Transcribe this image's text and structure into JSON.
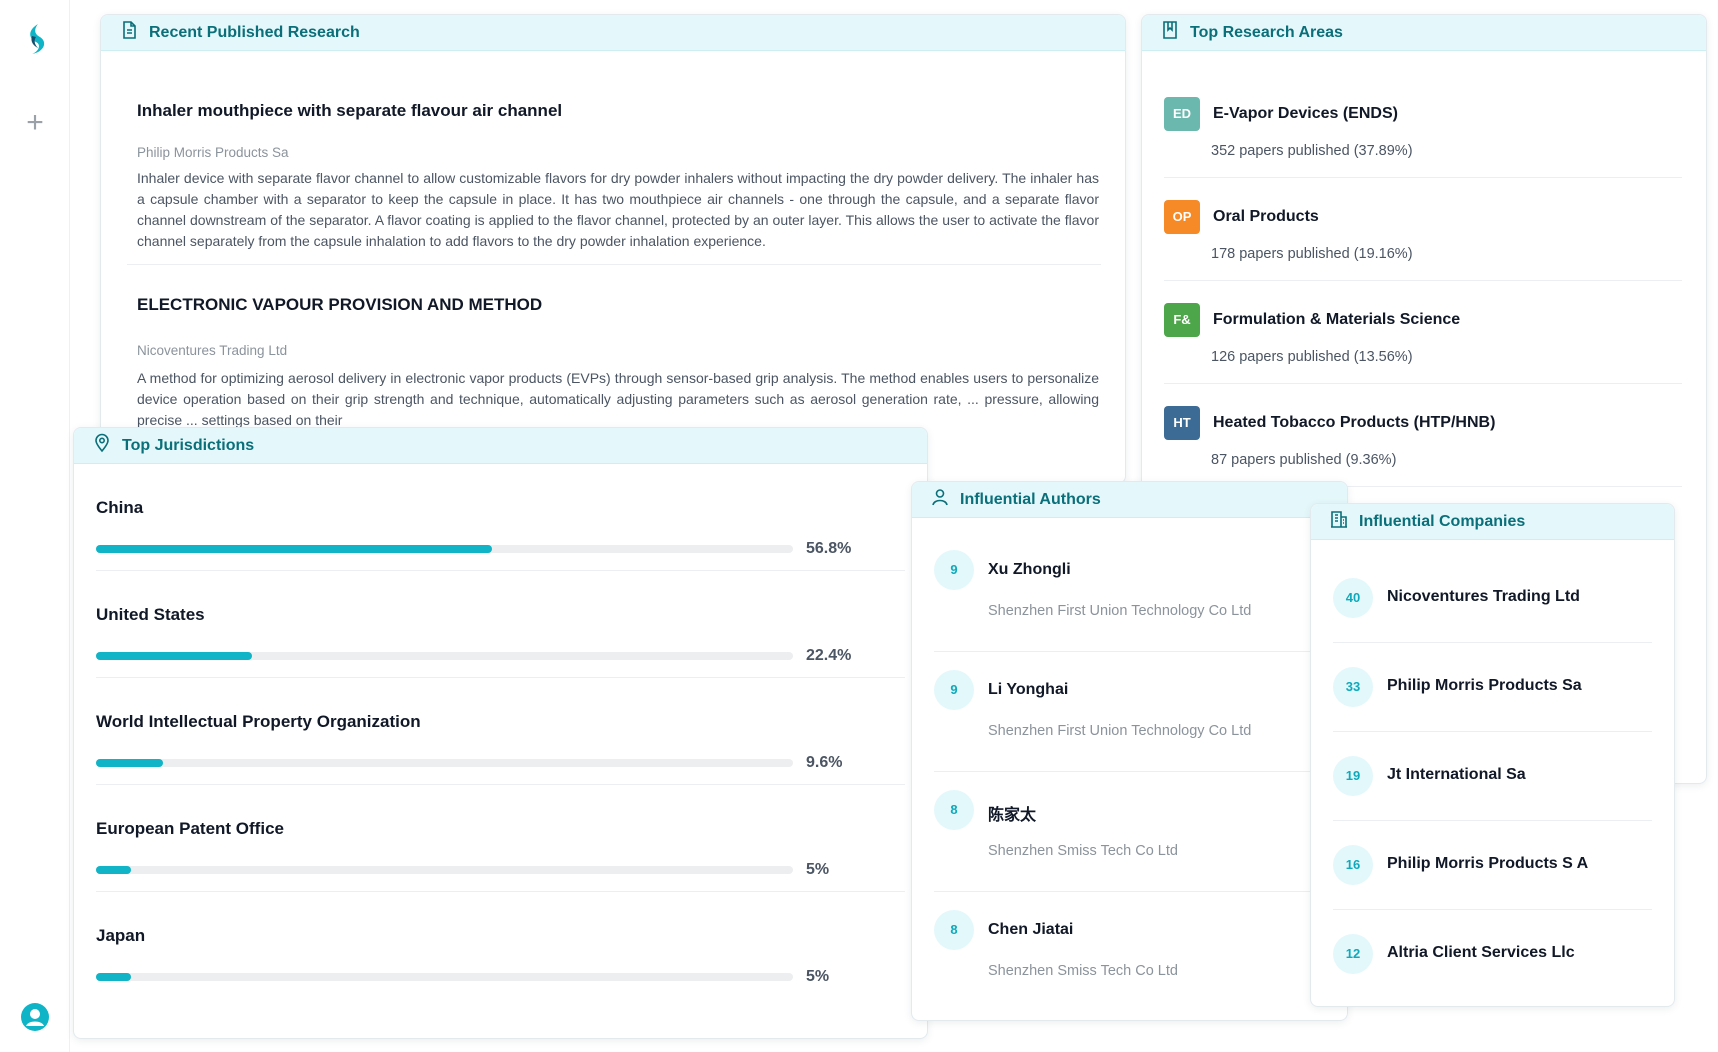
{
  "recent_research": {
    "title": "Recent Published Research",
    "papers": [
      {
        "title": "Inhaler mouthpiece with separate flavour air channel",
        "org": "Philip Morris Products Sa",
        "abstract": "Inhaler device with separate flavor channel to allow customizable flavors for dry powder inhalers without impacting the dry powder delivery. The inhaler has a capsule chamber with a separator to keep the capsule in place. It has two mouthpiece air channels - one through the capsule, and a separate flavor channel downstream of the separator. A flavor coating is applied to the flavor channel, protected by an outer layer. This allows the user to activate the flavor channel separately from the capsule inhalation to add flavors to the dry powder inhalation experience."
      },
      {
        "title": "ELECTRONIC VAPOUR PROVISION AND METHOD",
        "org": "Nicoventures Trading Ltd",
        "abstract": "A method for optimizing aerosol delivery in electronic vapor products (EVPs) through sensor-based grip analysis. The method enables users to personalize device operation based on their grip strength and technique, automatically adjusting parameters such as aerosol generation rate, ... pressure, allowing precise ... settings based on their"
      }
    ]
  },
  "research_areas": {
    "title": "Top Research Areas",
    "items": [
      {
        "badge": "ED",
        "color": "#6bb8ae",
        "name": "E-Vapor Devices (ENDS)",
        "count": "352 papers published (37.89%)"
      },
      {
        "badge": "OP",
        "color": "#f58a27",
        "name": "Oral Products",
        "count": "178 papers published (19.16%)"
      },
      {
        "badge": "F&",
        "color": "#4ea64b",
        "name": "Formulation & Materials Science",
        "count": "126 papers published (13.56%)"
      },
      {
        "badge": "HT",
        "color": "#3c6b95",
        "name": "Heated Tobacco Products (HTP/HNB)",
        "count": "87 papers published (9.36%)"
      }
    ]
  },
  "jurisdictions": {
    "title": "Top Jurisdictions",
    "items": [
      {
        "name": "China",
        "pct": "56.8%",
        "value": 56.8
      },
      {
        "name": "United States",
        "pct": "22.4%",
        "value": 22.4
      },
      {
        "name": "World Intellectual Property Organization",
        "pct": "9.6%",
        "value": 9.6
      },
      {
        "name": "European Patent Office",
        "pct": "5%",
        "value": 5
      },
      {
        "name": "Japan",
        "pct": "5%",
        "value": 5
      }
    ]
  },
  "authors": {
    "title": "Influential Authors",
    "items": [
      {
        "count": "9",
        "name": "Xu Zhongli",
        "org": "Shenzhen First Union Technology Co Ltd"
      },
      {
        "count": "9",
        "name": "Li Yonghai",
        "org": "Shenzhen First Union Technology Co Ltd"
      },
      {
        "count": "8",
        "name": "陈家太",
        "org": "Shenzhen Smiss Tech Co Ltd"
      },
      {
        "count": "8",
        "name": "Chen Jiatai",
        "org": "Shenzhen Smiss Tech Co Ltd"
      }
    ]
  },
  "companies": {
    "title": "Influential Companies",
    "items": [
      {
        "count": "40",
        "name": "Nicoventures Trading Ltd"
      },
      {
        "count": "33",
        "name": "Philip Morris Products Sa"
      },
      {
        "count": "19",
        "name": "Jt International Sa"
      },
      {
        "count": "16",
        "name": "Philip Morris Products S A"
      },
      {
        "count": "12",
        "name": "Altria Client Services Llc"
      }
    ]
  },
  "colors": {
    "accent": "#10b4c6",
    "header_bg": "#e4f8fb",
    "header_text": "#0b6f7a"
  },
  "icons": [
    "app-logo-icon",
    "plus-icon",
    "user-icon",
    "document-icon",
    "book-icon",
    "location-pin-icon",
    "person-icon",
    "building-icon"
  ]
}
